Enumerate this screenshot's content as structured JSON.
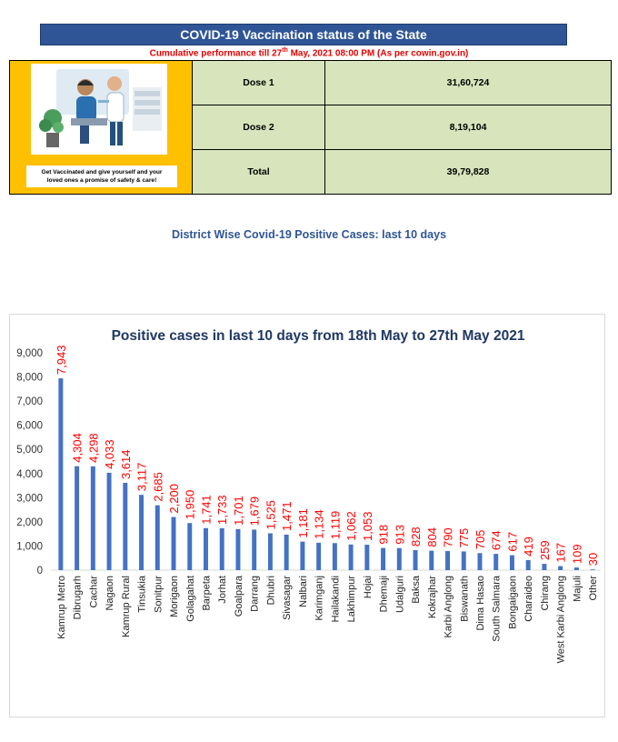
{
  "header": {
    "title": "COVID-19 Vaccination status of the State",
    "subtitle_pre": "Cumulative performance till 27",
    "subtitle_sup": "th",
    "subtitle_post": "  May, 2021 08:00  PM (As per cowin.gov.in)"
  },
  "poster": {
    "line1": "Get Vaccinated and give yourself and your",
    "line2": "loved ones a promise of safety & care!"
  },
  "vaccination": [
    {
      "label": "Dose 1",
      "value": "31,60,724"
    },
    {
      "label": "Dose 2",
      "value": "8,19,104"
    },
    {
      "label": "Total",
      "value": "39,79,828"
    }
  ],
  "section_title": "District Wise Covid-19 Positive Cases: last 10 days",
  "colors": {
    "banner": "#2f5597",
    "bar": "#4472c4",
    "label": "#ff0000",
    "table_fill": "#d7e4bc",
    "poster_bg": "#ffc000"
  },
  "chart_data": {
    "type": "bar",
    "title": "Positive cases in last 10 days from 18th May to 27th May 2021",
    "categories": [
      "Kamrup Metro",
      "Dibrugarh",
      "Cachar",
      "Nagaon",
      "Kamrup Rural",
      "Tinsukia",
      "Sonitpur",
      "Morigaon",
      "Golagahat",
      "Barpeta",
      "Jorhat",
      "Goalpara",
      "Darrang",
      "Dhubri",
      "Sivasagar",
      "Nalbari",
      "Karimganj",
      "Hailakandi",
      "Lakhimpur",
      "Hojai",
      "Dhemaji",
      "Udalguri",
      "Baksa",
      "Kokrajhar",
      "Karbi Anglong",
      "Biswanath",
      "Dima Hasao",
      "South Salmara",
      "Bongaigaon",
      "Charaideo",
      "Chirang",
      "West Karbi Anglong",
      "Majuli",
      "Other"
    ],
    "values": [
      7943,
      4304,
      4298,
      4033,
      3614,
      3117,
      2685,
      2200,
      1950,
      1741,
      1733,
      1701,
      1679,
      1525,
      1471,
      1181,
      1134,
      1119,
      1062,
      1053,
      918,
      913,
      828,
      804,
      790,
      775,
      705,
      674,
      617,
      419,
      259,
      167,
      109,
      30
    ],
    "data_labels": [
      "7,943",
      "4,304",
      "4,298",
      "4,033",
      "3,614",
      "3,117",
      "2,685",
      "2,200",
      "1,950",
      "1,741",
      "1,733",
      "1,701",
      "1,679",
      "1,525",
      "1,471",
      "1,181",
      "1,134",
      "1,119",
      "1,062",
      "1,053",
      "918",
      "913",
      "828",
      "804",
      "790",
      "775",
      "705",
      "674",
      "617",
      "419",
      "259",
      "167",
      "109",
      "30"
    ],
    "yticks": [
      "0",
      "1,000",
      "2,000",
      "3,000",
      "4,000",
      "5,000",
      "6,000",
      "7,000",
      "8,000",
      "9,000"
    ],
    "ylim": [
      0,
      9000
    ],
    "grid": false,
    "legend": "none"
  }
}
